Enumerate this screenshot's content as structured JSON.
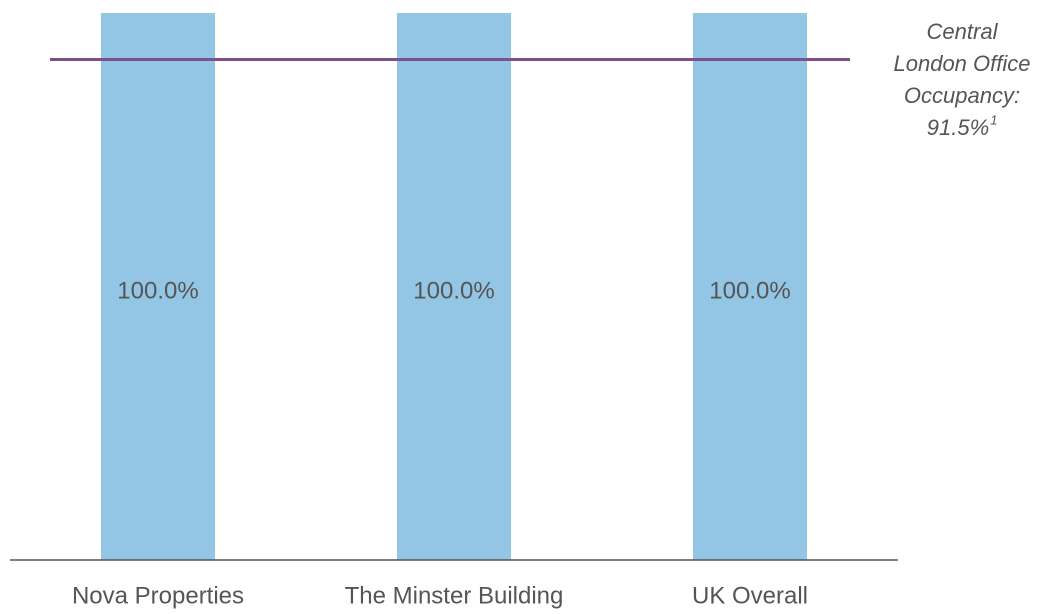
{
  "chart_data": {
    "type": "bar",
    "categories": [
      "Nova Properties",
      "The Minster Building",
      "UK Overall"
    ],
    "values": [
      100,
      100,
      100
    ],
    "value_labels": [
      "100.0%",
      "100.0%",
      "100.0%"
    ],
    "color": "#93c6e4",
    "ylim": [
      0,
      100
    ],
    "reference_line": {
      "value": 91.5,
      "color": "#7b4f8c",
      "label": [
        "Central",
        "London Office",
        "Occupancy:",
        "91.5%"
      ],
      "footnote": "1"
    }
  }
}
